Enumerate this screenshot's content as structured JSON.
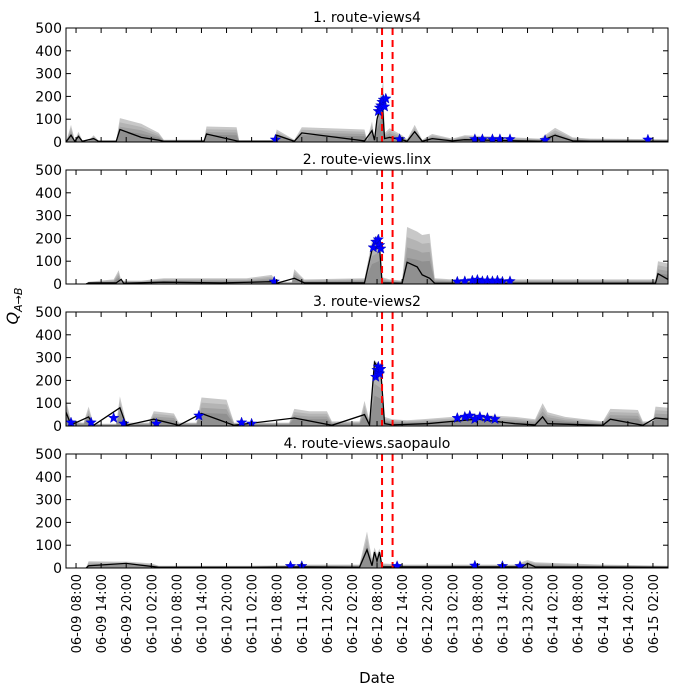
{
  "figure": {
    "ylabel": "Q_{A→B}",
    "xlabel": "Date"
  },
  "chart_data": [
    {
      "type": "area",
      "title": "1. route-views4",
      "ylim": [
        0,
        500
      ],
      "yticks": [
        0,
        100,
        200,
        300,
        400,
        500
      ],
      "xlim": [
        -0.4,
        23.6
      ],
      "xticks": [
        "06-09 08:00",
        "06-09 14:00",
        "06-09 20:00",
        "06-10 02:00",
        "06-10 08:00",
        "06-10 14:00",
        "06-10 20:00",
        "06-11 02:00",
        "06-11 08:00",
        "06-11 14:00",
        "06-11 20:00",
        "06-12 02:00",
        "06-12 08:00",
        "06-12 14:00",
        "06-12 20:00",
        "06-13 02:00",
        "06-13 08:00",
        "06-13 14:00",
        "06-13 20:00",
        "06-14 02:00",
        "06-14 08:00",
        "06-14 14:00",
        "06-14 20:00",
        "06-15 02:00"
      ],
      "vlines": [
        12.2,
        12.62
      ],
      "band": [
        [
          -0.4,
          0
        ],
        [
          -0.2,
          75
        ],
        [
          -0.05,
          8
        ],
        [
          0.1,
          45
        ],
        [
          0.25,
          8
        ],
        [
          0.5,
          6
        ],
        [
          0.7,
          30
        ],
        [
          0.9,
          6
        ],
        [
          1.6,
          6
        ],
        [
          1.75,
          105
        ],
        [
          2.6,
          80
        ],
        [
          3.3,
          40
        ],
        [
          3.5,
          10
        ],
        [
          5.1,
          10
        ],
        [
          5.2,
          68
        ],
        [
          6.4,
          65
        ],
        [
          6.5,
          8
        ],
        [
          7.9,
          8
        ],
        [
          8.0,
          55
        ],
        [
          8.7,
          10
        ],
        [
          9.0,
          65
        ],
        [
          11.5,
          55
        ],
        [
          11.6,
          10
        ],
        [
          11.8,
          90
        ],
        [
          11.9,
          20
        ],
        [
          12.0,
          120
        ],
        [
          12.25,
          270
        ],
        [
          12.3,
          40
        ],
        [
          12.5,
          60
        ],
        [
          13.0,
          30
        ],
        [
          13.2,
          12
        ],
        [
          13.5,
          75
        ],
        [
          13.8,
          10
        ],
        [
          14.2,
          35
        ],
        [
          15.0,
          15
        ],
        [
          15.5,
          30
        ],
        [
          18.5,
          15
        ],
        [
          19.1,
          62
        ],
        [
          19.8,
          20
        ],
        [
          20.5,
          15
        ],
        [
          23.6,
          12
        ]
      ],
      "values": [
        [
          -0.4,
          0
        ],
        [
          -0.2,
          30
        ],
        [
          -0.05,
          3
        ],
        [
          0.1,
          25
        ],
        [
          0.25,
          3
        ],
        [
          0.7,
          15
        ],
        [
          0.9,
          3
        ],
        [
          1.6,
          3
        ],
        [
          1.75,
          55
        ],
        [
          2.6,
          20
        ],
        [
          3.3,
          8
        ],
        [
          3.5,
          3
        ],
        [
          5.1,
          3
        ],
        [
          5.2,
          35
        ],
        [
          6.4,
          5
        ],
        [
          6.5,
          3
        ],
        [
          7.9,
          3
        ],
        [
          8.0,
          30
        ],
        [
          8.7,
          3
        ],
        [
          9.0,
          40
        ],
        [
          11.5,
          5
        ],
        [
          11.8,
          50
        ],
        [
          11.9,
          8
        ],
        [
          12.0,
          100
        ],
        [
          12.2,
          180
        ],
        [
          12.3,
          15
        ],
        [
          12.5,
          20
        ],
        [
          13.0,
          10
        ],
        [
          13.2,
          3
        ],
        [
          13.5,
          45
        ],
        [
          13.8,
          3
        ],
        [
          14.2,
          15
        ],
        [
          15.0,
          5
        ],
        [
          15.5,
          10
        ],
        [
          18.5,
          3
        ],
        [
          19.1,
          30
        ],
        [
          19.8,
          5
        ],
        [
          20.5,
          3
        ],
        [
          23.6,
          3
        ]
      ],
      "events": [
        [
          7.95,
          10
        ],
        [
          12.05,
          135
        ],
        [
          12.1,
          150
        ],
        [
          12.15,
          160
        ],
        [
          12.2,
          175
        ],
        [
          12.25,
          185
        ],
        [
          12.3,
          155
        ],
        [
          12.35,
          190
        ],
        [
          12.9,
          12
        ],
        [
          15.9,
          12
        ],
        [
          16.2,
          12
        ],
        [
          16.6,
          12
        ],
        [
          16.9,
          12
        ],
        [
          17.3,
          12
        ],
        [
          18.7,
          8
        ],
        [
          22.8,
          10
        ]
      ]
    },
    {
      "type": "area",
      "title": "2. route-views.linx",
      "ylim": [
        0,
        500
      ],
      "yticks": [
        0,
        100,
        200,
        300,
        400,
        500
      ],
      "xlim": [
        -0.4,
        23.6
      ],
      "vlines": [
        12.2,
        12.62
      ],
      "band": [
        [
          0.4,
          0
        ],
        [
          0.5,
          10
        ],
        [
          1.5,
          20
        ],
        [
          1.7,
          60
        ],
        [
          1.8,
          15
        ],
        [
          2.6,
          15
        ],
        [
          3.5,
          25
        ],
        [
          5.0,
          25
        ],
        [
          5.8,
          25
        ],
        [
          6.8,
          25
        ],
        [
          7.8,
          40
        ],
        [
          8.0,
          10
        ],
        [
          8.6,
          10
        ],
        [
          8.7,
          65
        ],
        [
          9.1,
          20
        ],
        [
          11.5,
          25
        ],
        [
          11.8,
          190
        ],
        [
          12.1,
          220
        ],
        [
          12.2,
          30
        ],
        [
          12.5,
          20
        ],
        [
          13.0,
          15
        ],
        [
          13.2,
          250
        ],
        [
          13.6,
          230
        ],
        [
          13.8,
          215
        ],
        [
          14.1,
          220
        ],
        [
          14.3,
          25
        ],
        [
          15.0,
          20
        ],
        [
          23.1,
          20
        ],
        [
          23.2,
          100
        ],
        [
          23.6,
          90
        ]
      ],
      "values": [
        [
          0.4,
          0
        ],
        [
          0.5,
          5
        ],
        [
          1.6,
          5
        ],
        [
          1.8,
          20
        ],
        [
          1.9,
          3
        ],
        [
          3.5,
          8
        ],
        [
          5.8,
          5
        ],
        [
          7.8,
          10
        ],
        [
          8.0,
          3
        ],
        [
          8.7,
          25
        ],
        [
          9.1,
          5
        ],
        [
          11.5,
          5
        ],
        [
          11.8,
          150
        ],
        [
          12.1,
          165
        ],
        [
          12.2,
          5
        ],
        [
          13.0,
          3
        ],
        [
          13.2,
          95
        ],
        [
          13.6,
          75
        ],
        [
          13.8,
          40
        ],
        [
          14.1,
          25
        ],
        [
          14.3,
          3
        ],
        [
          23.1,
          3
        ],
        [
          23.2,
          45
        ],
        [
          23.6,
          20
        ]
      ],
      "events": [
        [
          7.9,
          10
        ],
        [
          11.85,
          160
        ],
        [
          11.95,
          185
        ],
        [
          12.05,
          195
        ],
        [
          12.1,
          170
        ],
        [
          12.15,
          155
        ],
        [
          15.2,
          10
        ],
        [
          15.5,
          12
        ],
        [
          15.8,
          15
        ],
        [
          16.0,
          18
        ],
        [
          16.2,
          12
        ],
        [
          16.4,
          15
        ],
        [
          16.6,
          12
        ],
        [
          16.8,
          15
        ],
        [
          17.0,
          10
        ],
        [
          17.3,
          12
        ]
      ]
    },
    {
      "type": "area",
      "title": "3. route-views2",
      "ylim": [
        0,
        500
      ],
      "yticks": [
        0,
        100,
        200,
        300,
        400,
        500
      ],
      "xlim": [
        -0.4,
        23.6
      ],
      "vlines": [
        12.2,
        12.62
      ],
      "band": [
        [
          -0.4,
          120
        ],
        [
          -0.2,
          20
        ],
        [
          0.3,
          15
        ],
        [
          0.5,
          85
        ],
        [
          0.7,
          10
        ],
        [
          1.6,
          10
        ],
        [
          1.75,
          130
        ],
        [
          2.0,
          15
        ],
        [
          2.9,
          15
        ],
        [
          3.1,
          65
        ],
        [
          3.9,
          55
        ],
        [
          4.1,
          15
        ],
        [
          4.8,
          15
        ],
        [
          5.0,
          125
        ],
        [
          6.0,
          115
        ],
        [
          6.3,
          15
        ],
        [
          8.5,
          15
        ],
        [
          8.7,
          75
        ],
        [
          9.3,
          65
        ],
        [
          10.0,
          65
        ],
        [
          10.2,
          20
        ],
        [
          11.3,
          20
        ],
        [
          11.5,
          110
        ],
        [
          11.7,
          25
        ],
        [
          11.9,
          290
        ],
        [
          12.15,
          260
        ],
        [
          12.3,
          40
        ],
        [
          12.6,
          30
        ],
        [
          13.2,
          25
        ],
        [
          13.8,
          30
        ],
        [
          15.0,
          40
        ],
        [
          16.0,
          50
        ],
        [
          17.5,
          40
        ],
        [
          18.3,
          30
        ],
        [
          18.6,
          100
        ],
        [
          18.8,
          60
        ],
        [
          19.5,
          40
        ],
        [
          21.0,
          20
        ],
        [
          21.3,
          75
        ],
        [
          22.4,
          70
        ],
        [
          22.6,
          20
        ],
        [
          23.0,
          20
        ],
        [
          23.1,
          85
        ],
        [
          23.6,
          80
        ]
      ],
      "values": [
        [
          -0.4,
          60
        ],
        [
          -0.2,
          5
        ],
        [
          0.5,
          40
        ],
        [
          0.7,
          3
        ],
        [
          1.75,
          80
        ],
        [
          2.0,
          3
        ],
        [
          3.1,
          30
        ],
        [
          4.1,
          3
        ],
        [
          5.0,
          55
        ],
        [
          6.3,
          3
        ],
        [
          8.7,
          35
        ],
        [
          10.2,
          3
        ],
        [
          11.5,
          50
        ],
        [
          11.7,
          5
        ],
        [
          11.9,
          280
        ],
        [
          12.15,
          240
        ],
        [
          12.3,
          10
        ],
        [
          12.6,
          5
        ],
        [
          14.0,
          10
        ],
        [
          15.0,
          20
        ],
        [
          16.0,
          30
        ],
        [
          17.5,
          10
        ],
        [
          18.3,
          5
        ],
        [
          18.6,
          40
        ],
        [
          18.8,
          10
        ],
        [
          21.0,
          3
        ],
        [
          21.3,
          30
        ],
        [
          22.6,
          3
        ],
        [
          23.1,
          35
        ],
        [
          23.6,
          30
        ]
      ],
      "events": [
        [
          -0.2,
          15
        ],
        [
          0.6,
          15
        ],
        [
          1.5,
          35
        ],
        [
          1.9,
          10
        ],
        [
          3.2,
          10
        ],
        [
          4.9,
          45
        ],
        [
          6.6,
          15
        ],
        [
          7.0,
          10
        ],
        [
          11.95,
          215
        ],
        [
          12.0,
          245
        ],
        [
          12.05,
          260
        ],
        [
          12.1,
          230
        ],
        [
          12.15,
          250
        ],
        [
          15.2,
          35
        ],
        [
          15.5,
          40
        ],
        [
          15.7,
          45
        ],
        [
          15.9,
          30
        ],
        [
          16.1,
          40
        ],
        [
          16.4,
          35
        ],
        [
          16.7,
          30
        ]
      ]
    },
    {
      "type": "area",
      "title": "4. route-views.saopaulo",
      "ylim": [
        0,
        500
      ],
      "yticks": [
        0,
        100,
        200,
        300,
        400,
        500
      ],
      "xlim": [
        -0.4,
        23.6
      ],
      "vlines": [
        12.2,
        12.62
      ],
      "band": [
        [
          0.4,
          0
        ],
        [
          0.5,
          30
        ],
        [
          1.5,
          28
        ],
        [
          2.0,
          28
        ],
        [
          3.0,
          20
        ],
        [
          3.3,
          10
        ],
        [
          6.4,
          10
        ],
        [
          7.0,
          10
        ],
        [
          8.6,
          12
        ],
        [
          9.0,
          15
        ],
        [
          11.3,
          15
        ],
        [
          11.6,
          160
        ],
        [
          11.8,
          40
        ],
        [
          11.9,
          90
        ],
        [
          12.0,
          60
        ],
        [
          12.1,
          85
        ],
        [
          12.2,
          20
        ],
        [
          13.0,
          15
        ],
        [
          17.5,
          15
        ],
        [
          18.0,
          35
        ],
        [
          18.3,
          25
        ],
        [
          19.5,
          20
        ],
        [
          21.0,
          15
        ],
        [
          23.6,
          10
        ]
      ],
      "values": [
        [
          0.4,
          0
        ],
        [
          0.5,
          10
        ],
        [
          2.0,
          20
        ],
        [
          3.3,
          3
        ],
        [
          7.0,
          3
        ],
        [
          9.0,
          5
        ],
        [
          11.3,
          3
        ],
        [
          11.6,
          80
        ],
        [
          11.8,
          10
        ],
        [
          11.9,
          70
        ],
        [
          12.0,
          30
        ],
        [
          12.1,
          70
        ],
        [
          12.2,
          5
        ],
        [
          17.8,
          5
        ],
        [
          18.0,
          20
        ],
        [
          18.3,
          5
        ],
        [
          23.6,
          3
        ]
      ],
      "events": [
        [
          8.55,
          8
        ],
        [
          9.0,
          8
        ],
        [
          12.8,
          8
        ],
        [
          15.9,
          10
        ],
        [
          17.0,
          8
        ],
        [
          17.7,
          8
        ]
      ]
    }
  ]
}
